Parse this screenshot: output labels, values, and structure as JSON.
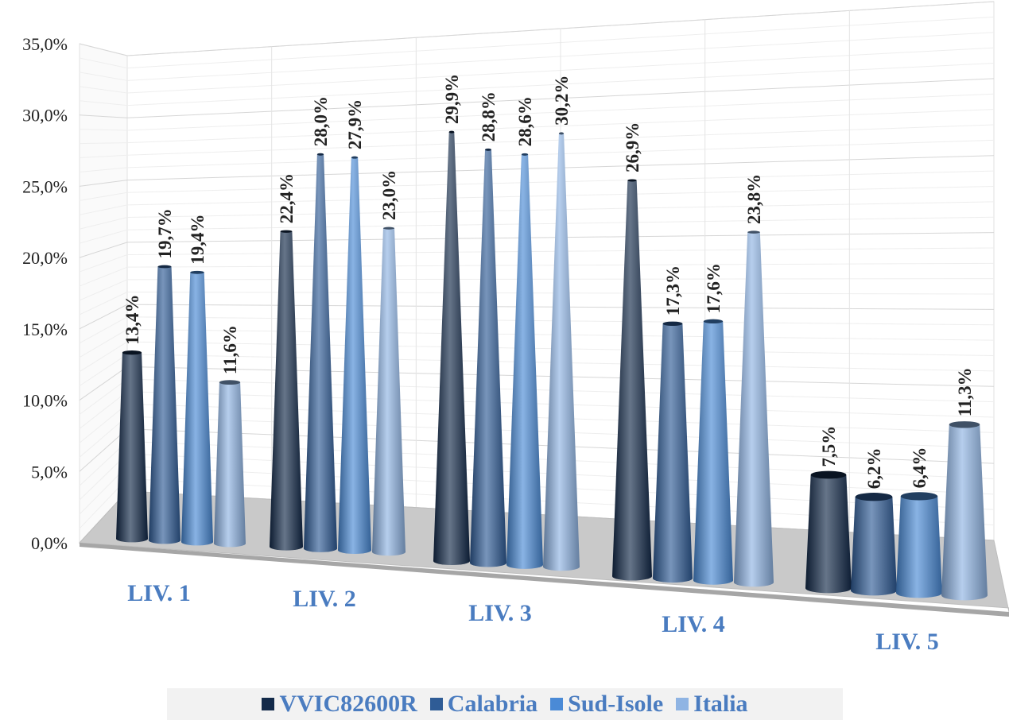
{
  "chart_data": {
    "type": "bar",
    "categories": [
      "LIV. 1",
      "LIV. 2",
      "LIV. 3",
      "LIV. 4",
      "LIV. 5"
    ],
    "series": [
      {
        "name": "VVIC82600R",
        "color": "#132a4a",
        "values": [
          13.4,
          22.4,
          29.9,
          26.9,
          7.5
        ],
        "labels": [
          "13,4%",
          "22,4%",
          "29,9%",
          "26,9%",
          "7,5%"
        ]
      },
      {
        "name": "Calabria",
        "color": "#2f5c96",
        "values": [
          19.7,
          28.0,
          28.8,
          17.3,
          6.2
        ],
        "labels": [
          "19,7%",
          "28,0%",
          "28,8%",
          "17,3%",
          "6,2%"
        ]
      },
      {
        "name": "Sud-Isole",
        "color": "#4a8ad6",
        "values": [
          19.4,
          27.9,
          28.6,
          17.6,
          6.4
        ],
        "labels": [
          "19,4%",
          "27,9%",
          "28,6%",
          "17,6%",
          "6,4%"
        ]
      },
      {
        "name": "Italia",
        "color": "#8fb4e3",
        "values": [
          11.6,
          23.0,
          30.2,
          23.8,
          11.3
        ],
        "labels": [
          "11,6%",
          "23,0%",
          "30,2%",
          "23,8%",
          "11,3%"
        ]
      }
    ],
    "yticks": [
      "0,0%",
      "5,0%",
      "10,0%",
      "15,0%",
      "20,0%",
      "25,0%",
      "30,0%",
      "35,0%"
    ],
    "ylim": [
      0,
      35
    ],
    "grid": true,
    "legend_position": "bottom"
  }
}
